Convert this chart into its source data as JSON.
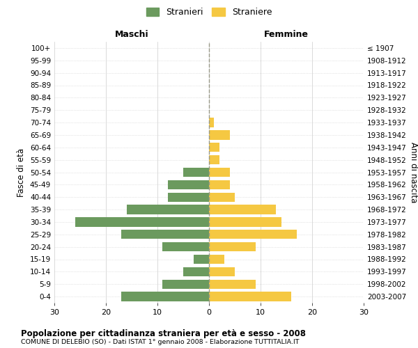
{
  "age_groups": [
    "100+",
    "95-99",
    "90-94",
    "85-89",
    "80-84",
    "75-79",
    "70-74",
    "65-69",
    "60-64",
    "55-59",
    "50-54",
    "45-49",
    "40-44",
    "35-39",
    "30-34",
    "25-29",
    "20-24",
    "15-19",
    "10-14",
    "5-9",
    "0-4"
  ],
  "birth_years": [
    "≤ 1907",
    "1908-1912",
    "1913-1917",
    "1918-1922",
    "1923-1927",
    "1928-1932",
    "1933-1937",
    "1938-1942",
    "1943-1947",
    "1948-1952",
    "1953-1957",
    "1958-1962",
    "1963-1967",
    "1968-1972",
    "1973-1977",
    "1978-1982",
    "1983-1987",
    "1988-1992",
    "1993-1997",
    "1998-2002",
    "2003-2007"
  ],
  "males": [
    0,
    0,
    0,
    0,
    0,
    0,
    0,
    0,
    0,
    0,
    5,
    8,
    8,
    16,
    26,
    17,
    9,
    3,
    5,
    9,
    17
  ],
  "females": [
    0,
    0,
    0,
    0,
    0,
    0,
    1,
    4,
    2,
    2,
    4,
    4,
    5,
    13,
    14,
    17,
    9,
    3,
    5,
    9,
    16
  ],
  "male_color": "#6b9a5e",
  "female_color": "#f5c842",
  "xlim": 30,
  "title": "Popolazione per cittadinanza straniera per età e sesso - 2008",
  "subtitle": "COMUNE DI DELEBIO (SO) - Dati ISTAT 1° gennaio 2008 - Elaborazione TUTTITALIA.IT",
  "ylabel_left": "Fasce di età",
  "ylabel_right": "Anni di nascita",
  "xlabel_left": "Maschi",
  "xlabel_right": "Femmine",
  "legend_male": "Stranieri",
  "legend_female": "Straniere",
  "background_color": "#ffffff",
  "grid_color": "#cccccc"
}
